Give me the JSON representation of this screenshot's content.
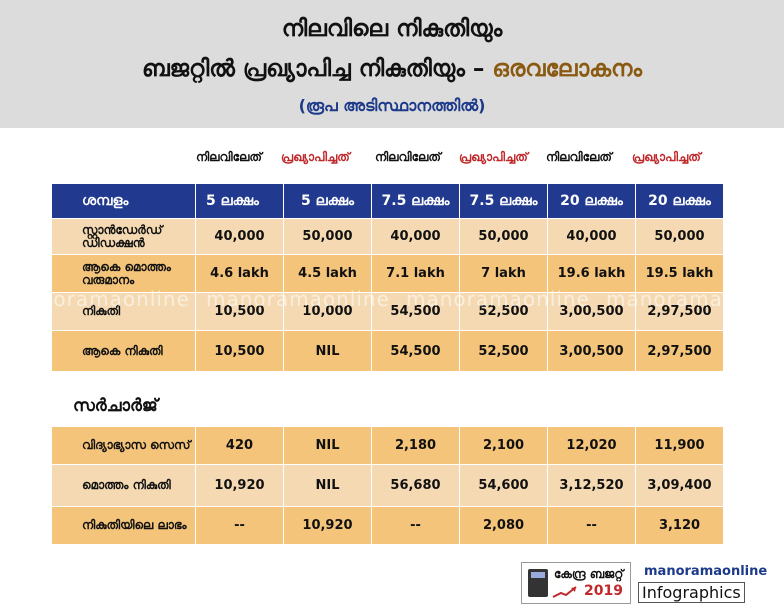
{
  "header": {
    "line1": "നിലവിലെ നികുതിയും",
    "line2_main": "ബജറ്റിൽ പ്രഖ്യാപിച്ച നികുതിയും –",
    "line2_accent": "ഒരവലോകനം",
    "line3": "(രൂപ അടിസ്ഥാനത്തിൽ)"
  },
  "columns": [
    {
      "label": "നിലവിലേത്",
      "kind": "existing"
    },
    {
      "label": "പ്രഖ്യാപിച്ചത്",
      "kind": "proposed"
    },
    {
      "label": "നിലവിലേത്",
      "kind": "existing"
    },
    {
      "label": "പ്രഖ്യാപിച്ചത്",
      "kind": "proposed"
    },
    {
      "label": "നിലവിലേത്",
      "kind": "existing"
    },
    {
      "label": "പ്രഖ്യാപിച്ചത്",
      "kind": "proposed"
    }
  ],
  "table_header": {
    "label": "ശമ്പളം",
    "salaries": [
      "5 ലക്ഷം",
      "5 ലക്ഷം",
      "7.5 ലക്ഷം",
      "7.5 ലക്ഷം",
      "20 ലക്ഷം",
      "20 ലക്ഷം"
    ]
  },
  "rows": [
    {
      "label": "സ്റ്റാൻഡേർഡ് ഡിഡക്ഷൻ",
      "values": [
        "40,000",
        "50,000",
        "40,000",
        "50,000",
        "40,000",
        "50,000"
      ]
    },
    {
      "label": "ആകെ മൊത്തം വരുമാനം",
      "values": [
        "4.6 lakh",
        "4.5 lakh",
        "7.1 lakh",
        "7 lakh",
        "19.6 lakh",
        "19.5 lakh"
      ]
    },
    {
      "label": "നികുതി",
      "values": [
        "10,500",
        "10,000",
        "54,500",
        "52,500",
        "3,00,500",
        "2,97,500"
      ]
    },
    {
      "label": "ആകെ നികുതി",
      "values": [
        "10,500",
        "NIL",
        "54,500",
        "52,500",
        "3,00,500",
        "2,97,500"
      ]
    }
  ],
  "surcharge": {
    "title": "സർചാർജ്",
    "rows": [
      {
        "label": "വിദ്യാഭ്യാസ സെസ്",
        "values": [
          "420",
          "NIL",
          "2,180",
          "2,100",
          "12,020",
          "11,900"
        ]
      },
      {
        "label": "മൊത്തം നികുതി",
        "values": [
          "10,920",
          "NIL",
          "56,680",
          "54,600",
          "3,12,520",
          "3,09,400"
        ]
      },
      {
        "label": "നികുതിയിലെ ലാഭം",
        "values": [
          "--",
          "10,920",
          "--",
          "2,080",
          "--",
          "3,120"
        ]
      }
    ]
  },
  "watermark": "manoramaonline",
  "footer": {
    "budget_text": "കേന്ദ്ര ബജറ്റ്",
    "budget_year": "2019",
    "mo_top": "manoramaonline",
    "mo_bottom": "Infographics"
  },
  "colors": {
    "header_bg": "#dcdcdc",
    "table_head": "#213a8f",
    "row_light": "#f4d9b2",
    "row_dark": "#f4c47a",
    "proposed_text": "#c0282b",
    "accent_title": "#8a5a12"
  }
}
